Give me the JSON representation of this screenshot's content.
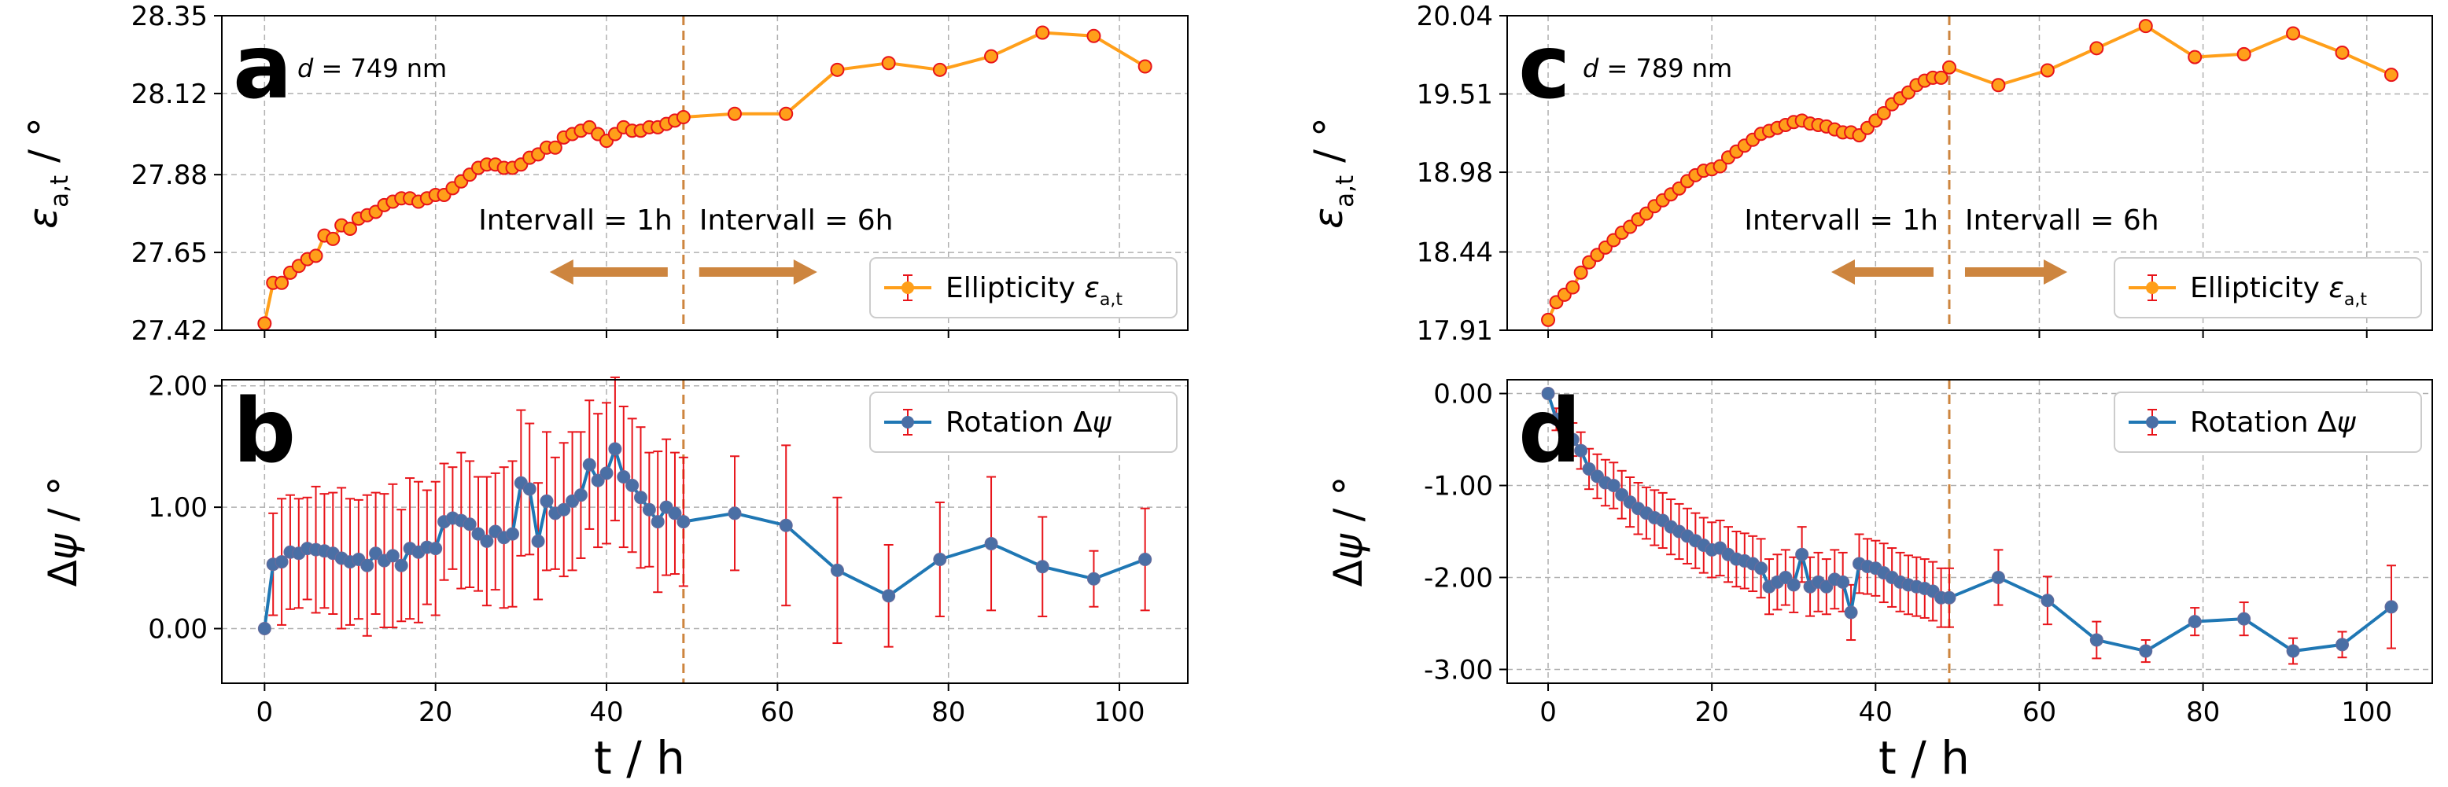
{
  "figure": {
    "x_axis_label": "t / h",
    "colors": {
      "ellipticity": "#ff9f1a",
      "rotation": "#1f77b4",
      "errorbar": "#e8141a",
      "marker_edge": "#6b6b9b",
      "interval_line": "#cd853f",
      "arrow": "#cd853f"
    }
  },
  "chart_data": [
    {
      "id": "a",
      "type": "line",
      "label": "a",
      "sample": "d = 749 nm",
      "ylabel": "ε_a,t / °",
      "xlim": [
        -5,
        108
      ],
      "ylim": [
        27.42,
        28.35
      ],
      "yticks": [
        "27.42",
        "27.65",
        "27.88",
        "28.12",
        "28.35"
      ],
      "ytick_values": [
        27.42,
        27.65,
        27.88,
        28.12,
        28.35
      ],
      "xticks": [
        0,
        20,
        40,
        60,
        80,
        100
      ],
      "show_xticklabels": false,
      "interval_line_x": 49,
      "annotations": [
        "Intervall = 1h",
        "Intervall = 6h"
      ],
      "legend": "Ellipticity ε_a,t",
      "legend_position": "lower-right",
      "series": [
        {
          "name": "Ellipticity",
          "color": "#ff9f1a",
          "marker": "#ff9f1a",
          "x": [
            0,
            1,
            2,
            3,
            4,
            5,
            6,
            7,
            8,
            9,
            10,
            11,
            12,
            13,
            14,
            15,
            16,
            17,
            18,
            19,
            20,
            21,
            22,
            23,
            24,
            25,
            26,
            27,
            28,
            29,
            30,
            31,
            32,
            33,
            34,
            35,
            36,
            37,
            38,
            39,
            40,
            41,
            42,
            43,
            44,
            45,
            46,
            47,
            48,
            49,
            55,
            61,
            67,
            73,
            79,
            85,
            91,
            97,
            103
          ],
          "y": [
            27.44,
            27.56,
            27.56,
            27.59,
            27.61,
            27.63,
            27.64,
            27.7,
            27.69,
            27.73,
            27.72,
            27.75,
            27.76,
            27.77,
            27.79,
            27.8,
            27.81,
            27.81,
            27.8,
            27.81,
            27.82,
            27.82,
            27.84,
            27.86,
            27.88,
            27.9,
            27.91,
            27.91,
            27.9,
            27.9,
            27.91,
            27.93,
            27.94,
            27.96,
            27.96,
            27.99,
            28.0,
            28.01,
            28.02,
            28.0,
            27.98,
            28.0,
            28.02,
            28.01,
            28.01,
            28.02,
            28.02,
            28.03,
            28.04,
            28.05,
            28.06,
            28.06,
            28.19,
            28.21,
            28.19,
            28.23,
            28.3,
            28.29,
            28.2
          ],
          "err": 0.006
        }
      ]
    },
    {
      "id": "b",
      "type": "line",
      "label": "b",
      "ylabel": "Δψ / °",
      "xlim": [
        -5,
        108
      ],
      "ylim": [
        -0.45,
        2.05
      ],
      "yticks": [
        "0.00",
        "1.00",
        "2.00"
      ],
      "ytick_values": [
        0,
        1,
        2
      ],
      "xticks": [
        0,
        20,
        40,
        60,
        80,
        100
      ],
      "show_xticklabels": true,
      "interval_line_x": 49,
      "legend": "Rotation Δψ",
      "legend_position": "top-right",
      "series": [
        {
          "name": "Rotation",
          "color": "#1f77b4",
          "marker": "#4a6fa5",
          "x": [
            0,
            1,
            2,
            3,
            4,
            5,
            6,
            7,
            8,
            9,
            10,
            11,
            12,
            13,
            14,
            15,
            16,
            17,
            18,
            19,
            20,
            21,
            22,
            23,
            24,
            25,
            26,
            27,
            28,
            29,
            30,
            31,
            32,
            33,
            34,
            35,
            36,
            37,
            38,
            39,
            40,
            41,
            42,
            43,
            44,
            45,
            46,
            47,
            48,
            49,
            55,
            61,
            67,
            73,
            79,
            85,
            91,
            97,
            103
          ],
          "y": [
            0.0,
            0.53,
            0.55,
            0.63,
            0.62,
            0.66,
            0.65,
            0.64,
            0.62,
            0.58,
            0.55,
            0.57,
            0.52,
            0.62,
            0.56,
            0.6,
            0.52,
            0.66,
            0.63,
            0.67,
            0.66,
            0.88,
            0.91,
            0.89,
            0.86,
            0.78,
            0.72,
            0.8,
            0.75,
            0.78,
            1.2,
            1.15,
            0.72,
            1.05,
            0.95,
            0.98,
            1.05,
            1.1,
            1.35,
            1.22,
            1.28,
            1.48,
            1.25,
            1.18,
            1.08,
            0.98,
            0.88,
            1.0,
            0.95,
            0.88,
            0.95,
            0.85,
            0.48,
            0.27,
            0.57,
            0.7,
            0.51,
            0.41,
            0.57
          ],
          "err": [
            0.02,
            0.42,
            0.52,
            0.47,
            0.45,
            0.42,
            0.52,
            0.47,
            0.5,
            0.58,
            0.52,
            0.49,
            0.58,
            0.5,
            0.55,
            0.59,
            0.46,
            0.58,
            0.58,
            0.47,
            0.55,
            0.48,
            0.42,
            0.56,
            0.52,
            0.47,
            0.53,
            0.48,
            0.58,
            0.6,
            0.6,
            0.54,
            0.48,
            0.57,
            0.46,
            0.55,
            0.57,
            0.52,
            0.53,
            0.55,
            0.58,
            0.59,
            0.58,
            0.55,
            0.58,
            0.47,
            0.58,
            0.56,
            0.5,
            0.53,
            0.47,
            0.66,
            0.6,
            0.42,
            0.47,
            0.55,
            0.41,
            0.23,
            0.42
          ]
        }
      ]
    },
    {
      "id": "c",
      "type": "line",
      "label": "c",
      "sample": "d = 789 nm",
      "ylabel": "ε_a,t / °",
      "xlim": [
        -5,
        108
      ],
      "ylim": [
        17.91,
        20.04
      ],
      "yticks": [
        "17.91",
        "18.44",
        "18.98",
        "19.51",
        "20.04"
      ],
      "ytick_values": [
        17.91,
        18.44,
        18.98,
        19.51,
        20.04
      ],
      "xticks": [
        0,
        20,
        40,
        60,
        80,
        100
      ],
      "show_xticklabels": false,
      "interval_line_x": 49,
      "annotations": [
        "Intervall = 1h",
        "Intervall = 6h"
      ],
      "legend": "Ellipticity ε_a,t",
      "legend_position": "lower-right",
      "series": [
        {
          "name": "Ellipticity",
          "color": "#ff9f1a",
          "marker": "#ff9f1a",
          "x": [
            0,
            1,
            2,
            3,
            4,
            5,
            6,
            7,
            8,
            9,
            10,
            11,
            12,
            13,
            14,
            15,
            16,
            17,
            18,
            19,
            20,
            21,
            22,
            23,
            24,
            25,
            26,
            27,
            28,
            29,
            30,
            31,
            32,
            33,
            34,
            35,
            36,
            37,
            38,
            39,
            40,
            41,
            42,
            43,
            44,
            45,
            46,
            47,
            48,
            49,
            55,
            61,
            67,
            73,
            79,
            85,
            91,
            97,
            103
          ],
          "y": [
            17.98,
            18.1,
            18.15,
            18.2,
            18.3,
            18.37,
            18.42,
            18.47,
            18.52,
            18.57,
            18.61,
            18.66,
            18.7,
            18.75,
            18.79,
            18.83,
            18.87,
            18.92,
            18.96,
            18.99,
            19.0,
            19.02,
            19.08,
            19.12,
            19.16,
            19.2,
            19.24,
            19.26,
            19.28,
            19.3,
            19.32,
            19.33,
            19.31,
            19.3,
            19.29,
            19.27,
            19.25,
            19.25,
            19.23,
            19.28,
            19.33,
            19.38,
            19.44,
            19.48,
            19.52,
            19.57,
            19.6,
            19.62,
            19.62,
            19.69,
            19.57,
            19.67,
            19.82,
            19.97,
            19.76,
            19.78,
            19.92,
            19.79,
            19.64
          ],
          "err": 0.01
        }
      ]
    },
    {
      "id": "d",
      "type": "line",
      "label": "d",
      "ylabel": "Δψ / °",
      "xlim": [
        -5,
        108
      ],
      "ylim": [
        -3.15,
        0.15
      ],
      "yticks": [
        "0.00",
        "-1.00",
        "-2.00",
        "-3.00"
      ],
      "ytick_values": [
        0,
        -1,
        -2,
        -3
      ],
      "xticks": [
        0,
        20,
        40,
        60,
        80,
        100
      ],
      "show_xticklabels": true,
      "interval_line_x": 49,
      "legend": "Rotation Δψ",
      "legend_position": "top-right",
      "series": [
        {
          "name": "Rotation",
          "color": "#1f77b4",
          "marker": "#4a6fa5",
          "x": [
            0,
            1,
            2,
            3,
            4,
            5,
            6,
            7,
            8,
            9,
            10,
            11,
            12,
            13,
            14,
            15,
            16,
            17,
            18,
            19,
            20,
            21,
            22,
            23,
            24,
            25,
            26,
            27,
            28,
            29,
            30,
            31,
            32,
            33,
            34,
            35,
            36,
            37,
            38,
            39,
            40,
            41,
            42,
            43,
            44,
            45,
            46,
            47,
            48,
            49,
            55,
            61,
            67,
            73,
            79,
            85,
            91,
            97,
            103
          ],
          "y": [
            0.0,
            -0.28,
            -0.4,
            -0.5,
            -0.62,
            -0.82,
            -0.9,
            -0.97,
            -1.0,
            -1.1,
            -1.18,
            -1.25,
            -1.3,
            -1.35,
            -1.38,
            -1.45,
            -1.5,
            -1.55,
            -1.6,
            -1.65,
            -1.7,
            -1.68,
            -1.75,
            -1.8,
            -1.82,
            -1.85,
            -1.9,
            -2.1,
            -2.05,
            -2.0,
            -2.08,
            -1.75,
            -2.1,
            -2.05,
            -2.1,
            -2.02,
            -2.05,
            -2.38,
            -1.85,
            -1.88,
            -1.9,
            -1.95,
            -2.0,
            -2.05,
            -2.08,
            -2.1,
            -2.12,
            -2.15,
            -2.22,
            -2.22,
            -2.0,
            -2.25,
            -2.68,
            -2.8,
            -2.48,
            -2.45,
            -2.8,
            -2.73,
            -2.32
          ],
          "err": [
            0.02,
            0.12,
            0.15,
            0.18,
            0.2,
            0.22,
            0.24,
            0.25,
            0.25,
            0.26,
            0.27,
            0.28,
            0.28,
            0.3,
            0.3,
            0.3,
            0.3,
            0.3,
            0.3,
            0.3,
            0.3,
            0.3,
            0.3,
            0.3,
            0.3,
            0.3,
            0.32,
            0.3,
            0.3,
            0.3,
            0.3,
            0.3,
            0.32,
            0.32,
            0.3,
            0.32,
            0.32,
            0.3,
            0.32,
            0.3,
            0.3,
            0.32,
            0.32,
            0.32,
            0.32,
            0.32,
            0.32,
            0.32,
            0.32,
            0.32,
            0.3,
            0.26,
            0.2,
            0.12,
            0.15,
            0.18,
            0.14,
            0.14,
            0.45
          ]
        }
      ]
    }
  ]
}
